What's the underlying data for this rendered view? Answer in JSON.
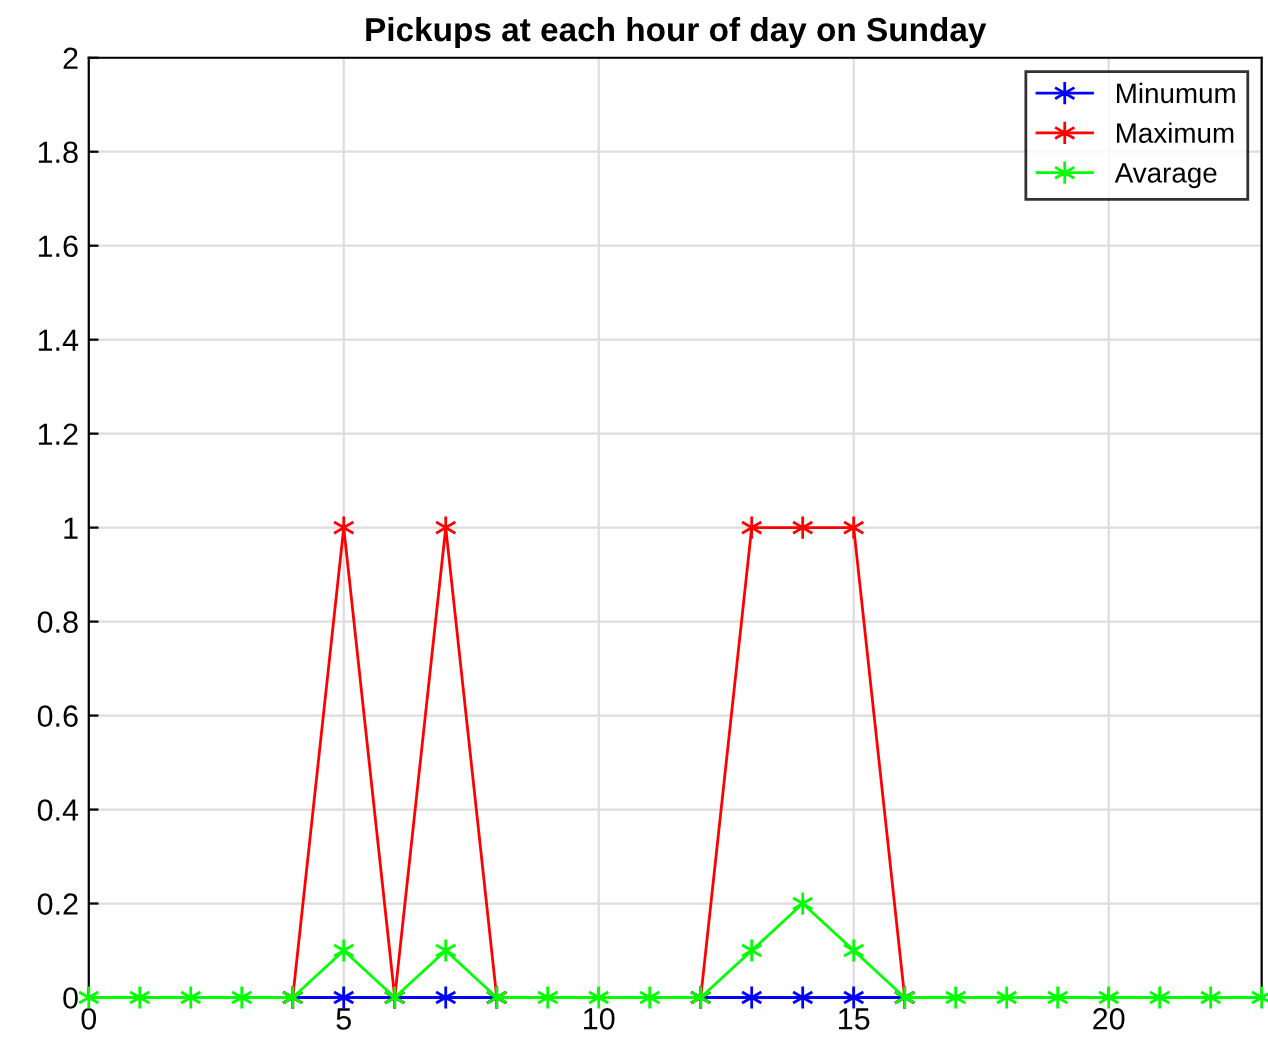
{
  "chart_data": {
    "type": "line",
    "title": "Pickups at each hour of day on Sunday",
    "x": [
      0,
      1,
      2,
      3,
      4,
      5,
      6,
      7,
      8,
      9,
      10,
      11,
      12,
      13,
      14,
      15,
      16,
      17,
      18,
      19,
      20,
      21,
      22,
      23
    ],
    "series": [
      {
        "name": "Minumum",
        "color": "#0000ff",
        "values": [
          null,
          null,
          null,
          null,
          0,
          0,
          0,
          0,
          0,
          null,
          null,
          null,
          0,
          0,
          0,
          0,
          0,
          null,
          null,
          null,
          null,
          null,
          null,
          null
        ]
      },
      {
        "name": "Maximum",
        "color": "#ff0000",
        "values": [
          null,
          null,
          null,
          null,
          0,
          1,
          0,
          1,
          0,
          null,
          null,
          null,
          0,
          1,
          1,
          1,
          0,
          null,
          null,
          null,
          null,
          null,
          null,
          null
        ]
      },
      {
        "name": "Avarage",
        "color": "#00ff00",
        "values": [
          0,
          0,
          0,
          0,
          0,
          0.1,
          0,
          0.1,
          0,
          0,
          0,
          0,
          0,
          0.1,
          0.2,
          0.1,
          0,
          0,
          0,
          0,
          0,
          0,
          0,
          0
        ]
      }
    ],
    "xlim": [
      0,
      23
    ],
    "xticks": [
      0,
      5,
      10,
      15,
      20
    ],
    "ylim": [
      0,
      2
    ],
    "yticks": [
      0,
      0.2,
      0.4,
      0.6,
      0.8,
      1,
      1.2,
      1.4,
      1.6,
      1.8,
      2
    ],
    "grid": true,
    "legend": "top right",
    "marker": "cross",
    "line_style": "solid"
  }
}
